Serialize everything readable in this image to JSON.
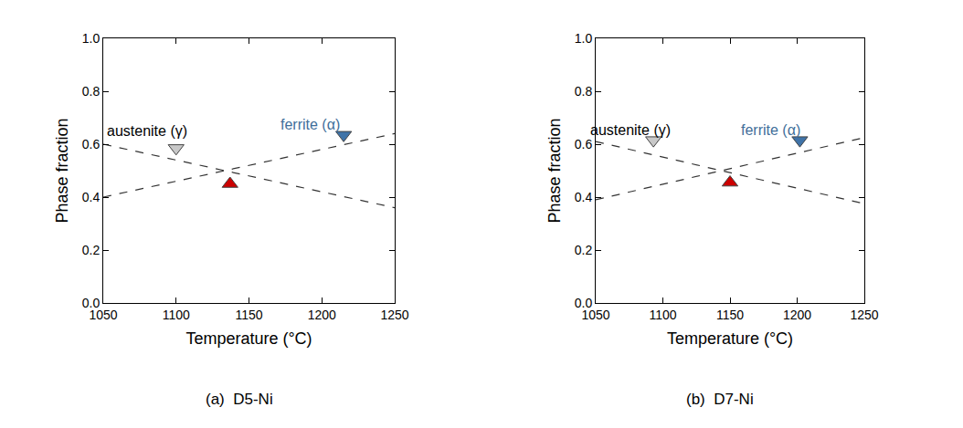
{
  "chart_data": [
    {
      "type": "line",
      "title": "(a)  D5-Ni",
      "x_label": "Temperature (°C)",
      "y_label": "Phase fraction",
      "xlim": [
        1050,
        1250
      ],
      "xticks": [
        1050,
        1100,
        1150,
        1200,
        1250
      ],
      "ylim": [
        0,
        1
      ],
      "yticks": [
        {
          "value": 0,
          "label": "0.0"
        },
        0.2,
        0.4,
        0.6,
        0.8,
        {
          "value": 1,
          "label": "1.0"
        }
      ],
      "series": [
        {
          "type": "line",
          "line_style": "dash",
          "color": "#333333",
          "x": [
            1050,
            1250
          ],
          "values": [
            0.6,
            0.36
          ]
        },
        {
          "type": "line",
          "line_style": "dash",
          "color": "#333333",
          "x": [
            1050,
            1250
          ],
          "values": [
            0.4,
            0.64
          ]
        },
        {
          "type": "scatter",
          "marker": "triangle-down",
          "color": "#c8c8c8",
          "x": [
            1100
          ],
          "values": [
            0.585
          ]
        },
        {
          "type": "scatter",
          "marker": "triangle-down",
          "color": "#3f73a8",
          "x": [
            1215
          ],
          "values": [
            0.635
          ]
        },
        {
          "type": "scatter",
          "marker": "triangle-up",
          "color": "#cc0000",
          "x": [
            1137
          ],
          "values": [
            0.45
          ]
        }
      ],
      "annotations": [
        {
          "text": "austenite (γ)",
          "x": 1080,
          "y": 0.65,
          "color": "#000000"
        },
        {
          "text": "ferrite (α)",
          "x": 1192,
          "y": 0.675,
          "color": "#3f6e9a"
        }
      ]
    },
    {
      "type": "line",
      "title": "(b)  D7-Ni",
      "x_label": "Temperature (°C)",
      "y_label": "Phase fraction",
      "xlim": [
        1050,
        1250
      ],
      "xticks": [
        1050,
        1100,
        1150,
        1200,
        1250
      ],
      "ylim": [
        0,
        1
      ],
      "yticks": [
        {
          "value": 0,
          "label": "0.0"
        },
        0.2,
        0.4,
        0.6,
        0.8,
        {
          "value": 1,
          "label": "1.0"
        }
      ],
      "series": [
        {
          "type": "line",
          "line_style": "dash",
          "color": "#333333",
          "x": [
            1050,
            1250
          ],
          "values": [
            0.61,
            0.375
          ]
        },
        {
          "type": "line",
          "line_style": "dash",
          "color": "#333333",
          "x": [
            1050,
            1250
          ],
          "values": [
            0.39,
            0.625
          ]
        },
        {
          "type": "scatter",
          "marker": "triangle-down",
          "color": "#c8c8c8",
          "x": [
            1093
          ],
          "values": [
            0.615
          ]
        },
        {
          "type": "scatter",
          "marker": "triangle-down",
          "color": "#3f73a8",
          "x": [
            1202
          ],
          "values": [
            0.615
          ]
        },
        {
          "type": "scatter",
          "marker": "triangle-up",
          "color": "#cc0000",
          "x": [
            1150
          ],
          "values": [
            0.455
          ]
        }
      ],
      "annotations": [
        {
          "text": "austenite (γ)",
          "x": 1076,
          "y": 0.655,
          "color": "#000000"
        },
        {
          "text": "ferrite (α)",
          "x": 1180,
          "y": 0.655,
          "color": "#3f6e9a"
        }
      ]
    }
  ]
}
